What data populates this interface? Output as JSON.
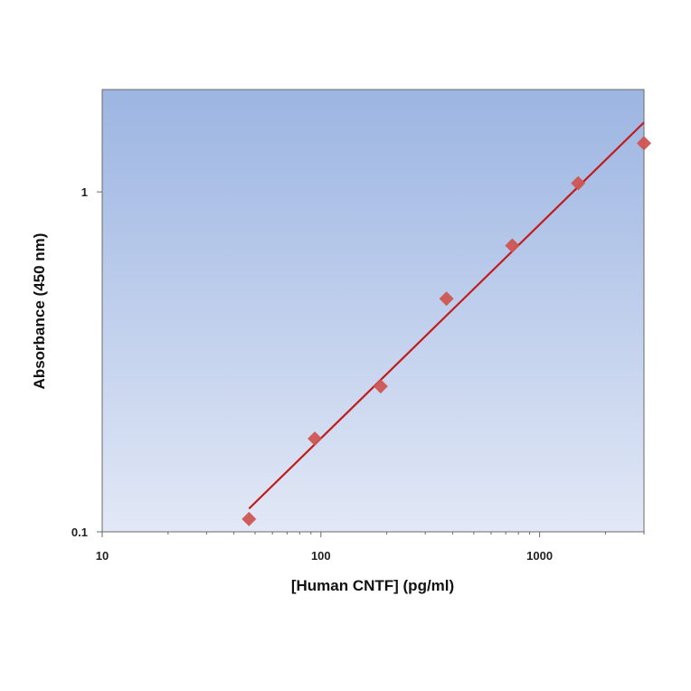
{
  "chart_data": {
    "type": "scatter",
    "title": "",
    "xlabel": "[Human CNTF] (pg/ml)",
    "ylabel": "Absorbance (450 nm)",
    "xscale": "log",
    "yscale": "log",
    "xlim": [
      10,
      3000
    ],
    "ylim": [
      0.1,
      2
    ],
    "xticks": [
      {
        "value": 10,
        "label": "10"
      },
      {
        "value": 100,
        "label": "100"
      },
      {
        "value": 1000,
        "label": "1000"
      }
    ],
    "yticks": [
      {
        "value": 0.1,
        "label": "0.1"
      },
      {
        "value": 1,
        "label": "1"
      }
    ],
    "grid": false,
    "legend": "none",
    "series": [
      {
        "kind": "points",
        "marker": "diamond",
        "color": "#cd5552",
        "x": [
          46.9,
          93.8,
          187.5,
          375,
          750,
          1500,
          3000
        ],
        "y": [
          0.109,
          0.188,
          0.268,
          0.485,
          0.695,
          1.06,
          1.39
        ]
      },
      {
        "kind": "fit-line",
        "color": "#c01c1c",
        "x": [
          46.9,
          3000
        ],
        "y": [
          0.117,
          1.6
        ]
      }
    ],
    "plot_background": {
      "top": "#9cb5e2",
      "bottom": "#e2e8f6"
    }
  }
}
